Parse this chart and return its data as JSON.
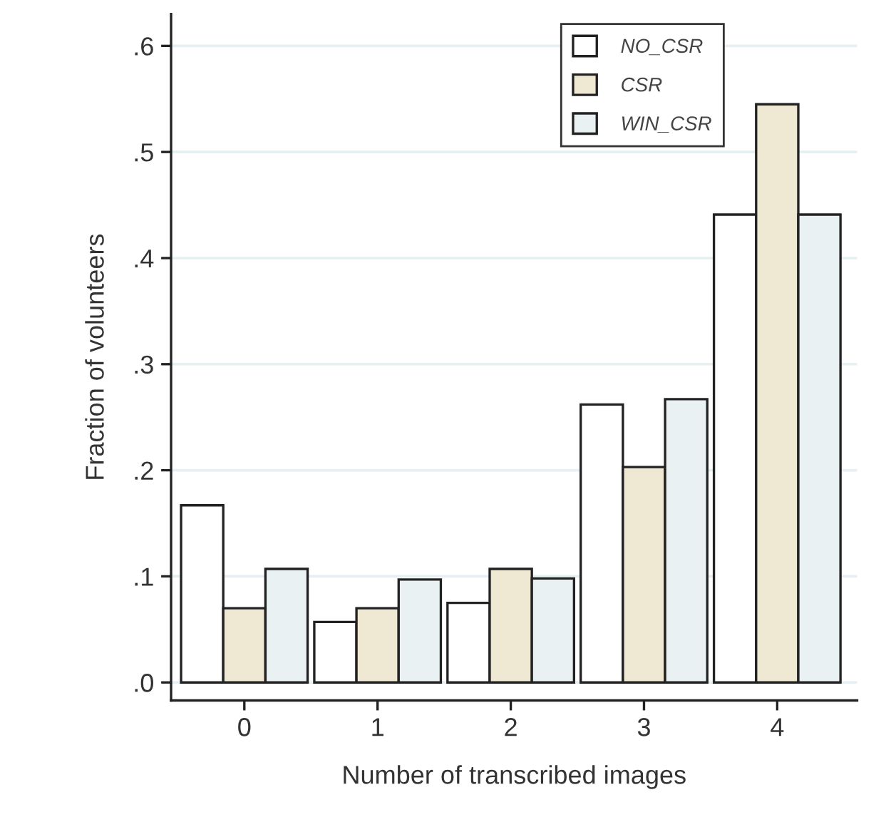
{
  "chart_data": {
    "type": "bar",
    "xlabel": "Number of transcribed images",
    "ylabel": "Fraction of volunteers",
    "categories": [
      "0",
      "1",
      "2",
      "3",
      "4"
    ],
    "series": [
      {
        "name": "NO_CSR",
        "color": "#ffffff",
        "values": [
          0.167,
          0.057,
          0.075,
          0.262,
          0.441
        ]
      },
      {
        "name": "CSR",
        "color": "#efe8d3",
        "values": [
          0.07,
          0.07,
          0.107,
          0.203,
          0.545
        ]
      },
      {
        "name": "WIN_CSR",
        "color": "#e9f1f3",
        "values": [
          0.107,
          0.097,
          0.098,
          0.267,
          0.441
        ]
      }
    ],
    "ylim": [
      -0.017,
      0.63
    ],
    "yticks": [
      {
        "value": 0,
        "label": ".0"
      },
      {
        "value": 0.1,
        "label": ".1"
      },
      {
        "value": 0.2,
        "label": ".2"
      },
      {
        "value": 0.3,
        "label": ".3"
      },
      {
        "value": 0.4,
        "label": ".4"
      },
      {
        "value": 0.5,
        "label": ".5"
      },
      {
        "value": 0.6,
        "label": ".6"
      }
    ],
    "grid": "y",
    "legend": "top right"
  }
}
